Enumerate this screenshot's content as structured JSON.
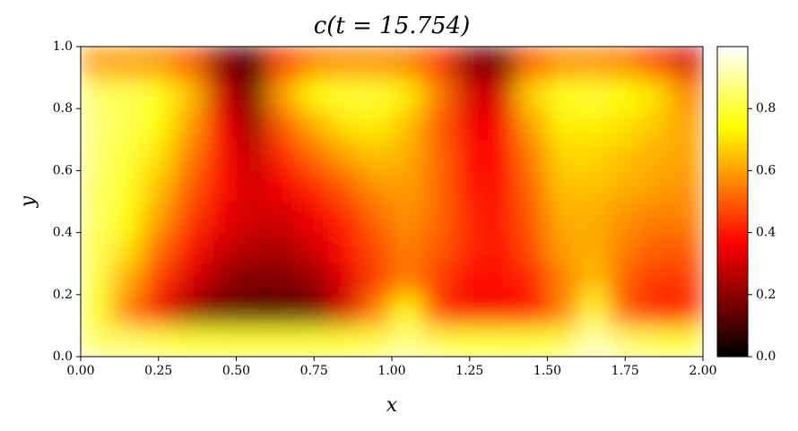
{
  "chart_data": {
    "type": "heatmap",
    "title": "c(t = 15.754)",
    "xlabel": "x",
    "ylabel": "y",
    "cmap": "hot",
    "x": [
      0.05,
      0.15,
      0.25,
      0.35,
      0.45,
      0.55,
      0.65,
      0.75,
      0.85,
      0.95,
      1.05,
      1.15,
      1.25,
      1.35,
      1.45,
      1.55,
      1.65,
      1.75,
      1.85,
      1.95
    ],
    "y": [
      0.05,
      0.15,
      0.25,
      0.35,
      0.45,
      0.55,
      0.65,
      0.75,
      0.85,
      0.95
    ],
    "z": [
      [
        0.85,
        0.85,
        0.82,
        0.8,
        0.8,
        0.8,
        0.8,
        0.8,
        0.8,
        0.82,
        0.88,
        0.82,
        0.8,
        0.8,
        0.8,
        0.82,
        0.92,
        0.85,
        0.82,
        0.8
      ],
      [
        0.8,
        0.55,
        0.35,
        0.22,
        0.15,
        0.12,
        0.12,
        0.15,
        0.3,
        0.55,
        0.75,
        0.45,
        0.35,
        0.35,
        0.38,
        0.55,
        0.8,
        0.5,
        0.4,
        0.42
      ],
      [
        0.82,
        0.62,
        0.45,
        0.32,
        0.22,
        0.18,
        0.18,
        0.22,
        0.32,
        0.45,
        0.55,
        0.45,
        0.38,
        0.38,
        0.42,
        0.55,
        0.65,
        0.5,
        0.45,
        0.45
      ],
      [
        0.83,
        0.7,
        0.52,
        0.4,
        0.3,
        0.25,
        0.25,
        0.3,
        0.38,
        0.48,
        0.55,
        0.5,
        0.42,
        0.4,
        0.48,
        0.6,
        0.62,
        0.55,
        0.5,
        0.5
      ],
      [
        0.84,
        0.75,
        0.6,
        0.45,
        0.35,
        0.3,
        0.3,
        0.35,
        0.42,
        0.52,
        0.58,
        0.52,
        0.42,
        0.4,
        0.5,
        0.62,
        0.62,
        0.58,
        0.55,
        0.55
      ],
      [
        0.85,
        0.78,
        0.65,
        0.5,
        0.38,
        0.3,
        0.35,
        0.42,
        0.5,
        0.58,
        0.6,
        0.52,
        0.4,
        0.38,
        0.52,
        0.65,
        0.65,
        0.62,
        0.6,
        0.58
      ],
      [
        0.86,
        0.8,
        0.7,
        0.55,
        0.38,
        0.28,
        0.42,
        0.52,
        0.6,
        0.65,
        0.62,
        0.52,
        0.38,
        0.37,
        0.55,
        0.68,
        0.68,
        0.65,
        0.62,
        0.6
      ],
      [
        0.87,
        0.82,
        0.75,
        0.6,
        0.35,
        0.22,
        0.5,
        0.62,
        0.7,
        0.72,
        0.65,
        0.5,
        0.35,
        0.35,
        0.6,
        0.72,
        0.72,
        0.7,
        0.66,
        0.6
      ],
      [
        0.85,
        0.83,
        0.78,
        0.65,
        0.3,
        0.15,
        0.6,
        0.75,
        0.8,
        0.8,
        0.72,
        0.55,
        0.3,
        0.3,
        0.68,
        0.78,
        0.8,
        0.75,
        0.7,
        0.55
      ],
      [
        0.6,
        0.6,
        0.58,
        0.5,
        0.2,
        0.08,
        0.45,
        0.55,
        0.58,
        0.58,
        0.55,
        0.45,
        0.2,
        0.15,
        0.5,
        0.58,
        0.58,
        0.55,
        0.45,
        0.3
      ]
    ],
    "xlim": [
      0,
      2
    ],
    "ylim": [
      0,
      1
    ],
    "xticks": [
      {
        "value": 0,
        "label": "0.00"
      },
      {
        "value": 0.25,
        "label": "0.25"
      },
      {
        "value": 0.5,
        "label": "0.50"
      },
      {
        "value": 0.75,
        "label": "0.75"
      },
      {
        "value": 1,
        "label": "1.00"
      },
      {
        "value": 1.25,
        "label": "1.25"
      },
      {
        "value": 1.5,
        "label": "1.50"
      },
      {
        "value": 1.75,
        "label": "1.75"
      },
      {
        "value": 2,
        "label": "2.00"
      }
    ],
    "yticks": [
      {
        "value": 0,
        "label": "0.0"
      },
      0.2,
      0.4,
      0.6,
      0.8,
      {
        "value": 1,
        "label": "1.0"
      }
    ],
    "clim": [
      0,
      1
    ],
    "cticks": [
      {
        "value": 0,
        "label": "0.0"
      },
      0.2,
      0.4,
      0.6,
      0.8
    ]
  }
}
